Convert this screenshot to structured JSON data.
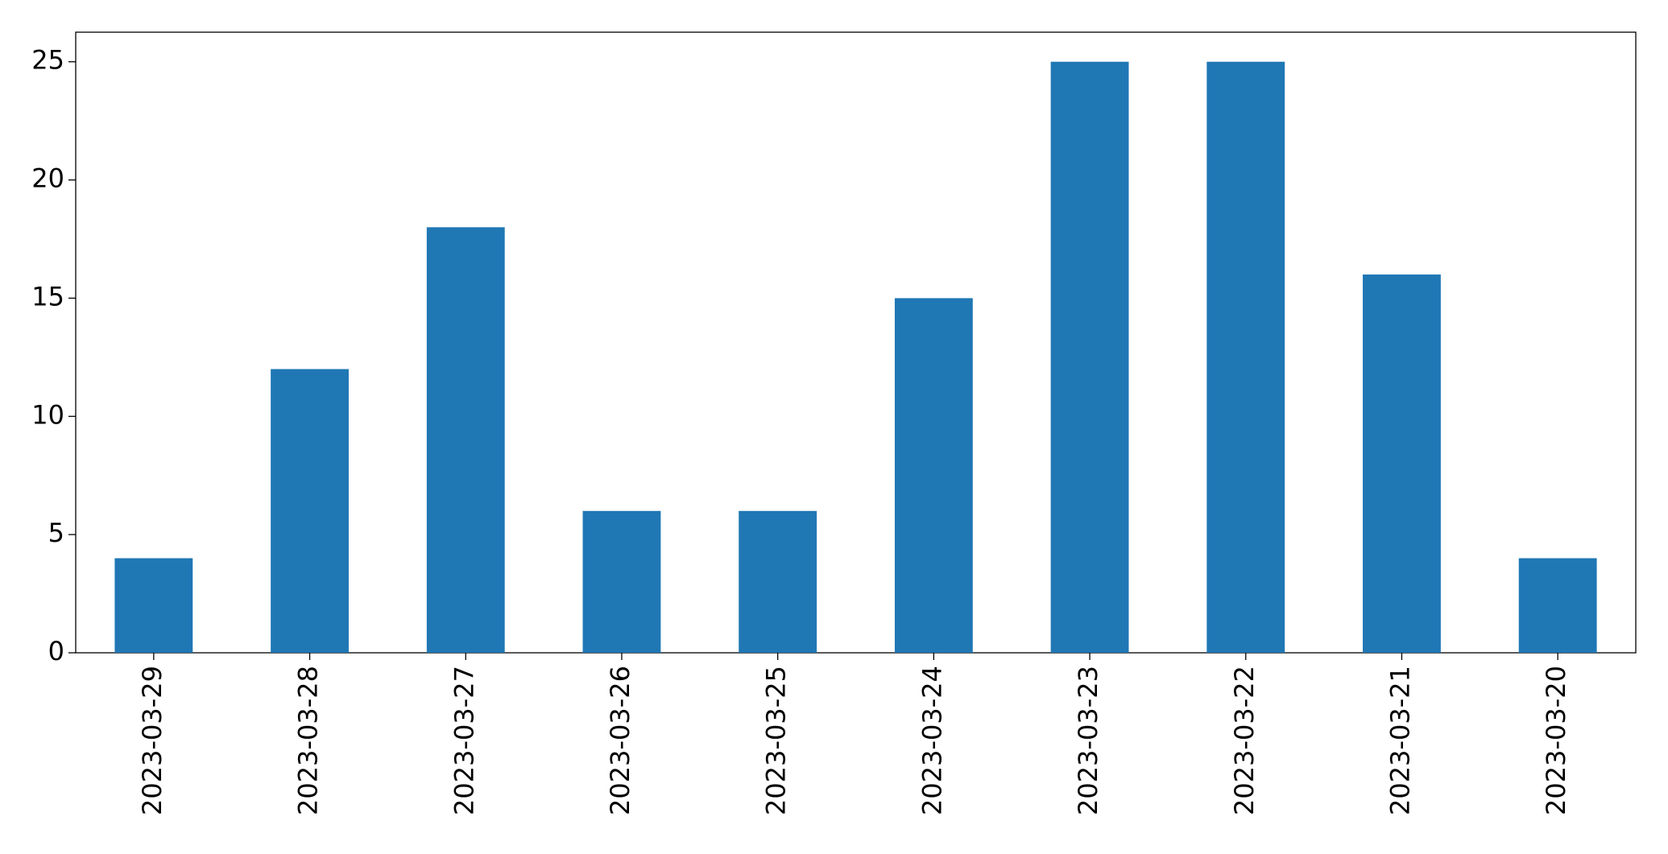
{
  "chart_data": {
    "type": "bar",
    "categories": [
      "2023-03-29",
      "2023-03-28",
      "2023-03-27",
      "2023-03-26",
      "2023-03-25",
      "2023-03-24",
      "2023-03-23",
      "2023-03-22",
      "2023-03-21",
      "2023-03-20"
    ],
    "values": [
      4,
      12,
      18,
      6,
      6,
      15,
      25,
      25,
      16,
      4
    ],
    "color": "#1f77b4",
    "ylim": [
      0,
      26.25
    ],
    "yticks": [
      0,
      5,
      10,
      15,
      20,
      25
    ],
    "grid": false
  }
}
